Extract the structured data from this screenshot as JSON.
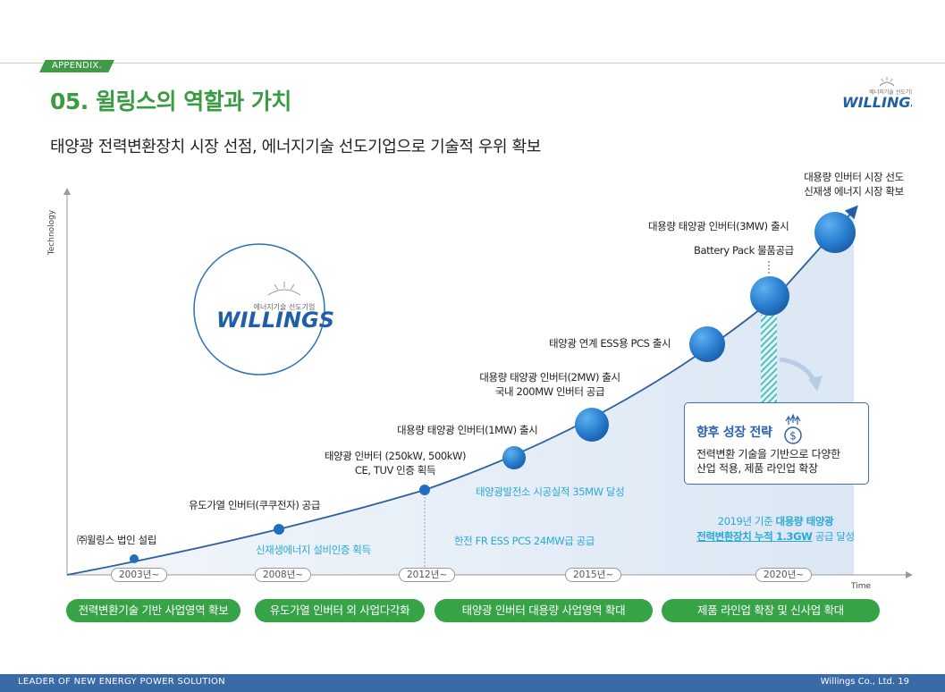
{
  "header": {
    "appendix": "APPENDIX.",
    "title": "05. 윌링스의 역할과 가치",
    "subtitle": "태양광 전력변환장치 시장 선점, 에너지기술 선도기업으로 기술적 우위 확보",
    "logo_tagline": "에너지기술 선도기업",
    "logo_text": "WILLINGS"
  },
  "axes": {
    "y_label": "Technology",
    "x_label": "Time"
  },
  "center_logo": {
    "tagline": "에너지기술 선도기업",
    "text": "WILLINGS"
  },
  "milestones": [
    {
      "year": "2003년~",
      "label": "㈜윌링스 법인 설립"
    },
    {
      "year": "2008년~",
      "label": "유도가열 인버터(쿠쿠전자) 공급"
    },
    {
      "year": "2012년~",
      "label_line1": "태양광 인버터 (250kW, 500kW)",
      "label_line2": "CE, TUV 인증 획득"
    },
    {
      "label": "대용량 태양광 인버터(1MW) 출시"
    },
    {
      "year": "2015년~",
      "label_line1": "대용량 태양광 인버터(2MW) 출시",
      "label_line2": "국내 200MW 인버터 공급"
    },
    {
      "label": "태양광 연계 ESS용 PCS 출시"
    },
    {
      "year": "2020년~",
      "label_line1": "대용량 태양광 인버터(3MW) 출시",
      "label_line2": "Battery Pack 물품공급"
    },
    {
      "label_line1": "대용량 인버터 시장 선도",
      "label_line2": "신재생 에너지 시장 확보"
    }
  ],
  "blue_notes": {
    "n1": "신재생에너지 설비인증 획득",
    "n2": "태양광발전소 시공실적 35MW 달성",
    "n3": "한전 FR ESS PCS 24MW급 공급",
    "n4_line1_a": "2019년 기준 ",
    "n4_line1_b": "대용량 태양광",
    "n4_line2_a": "전력변환장치 누적 1.3GW",
    "n4_line2_b": " 공급 달성"
  },
  "strategy": {
    "title": "향후 성장 전략",
    "line1": "전력변환 기술을 기반으로 다양한",
    "line2": "산업 적용, 제품 라인업 확장"
  },
  "phases": [
    "전력변환기술 기반 사업영역 확보",
    "유도가열 인버터 외 사업다각화",
    "태양광 인버터 대용량 사업영역 확대",
    "제품 라인업 확장 및 신사업 확대"
  ],
  "footer": {
    "left": "LEADER OF NEW ENERGY POWER SOLUTION",
    "right": "Willings Co., Ltd. 19"
  },
  "colors": {
    "green": "#3a9b42",
    "blue_text": "#2aa8d8",
    "dark_blue": "#2c62b1",
    "footer": "#3a6aa8"
  }
}
